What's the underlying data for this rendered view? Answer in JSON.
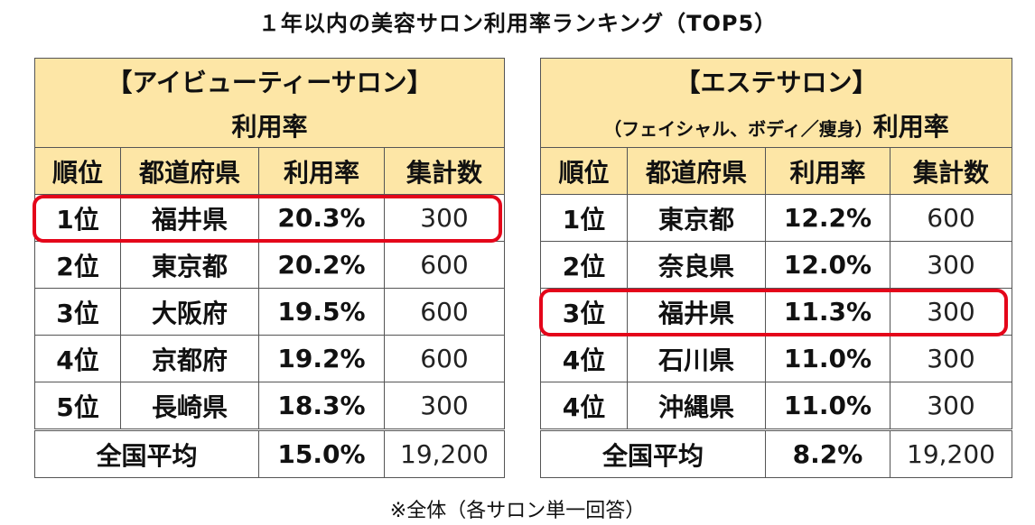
{
  "title": "１年以内の美容サロン利用率ランキング（TOP5）",
  "footnote": "※全体（各サロン単一回答）",
  "columns": [
    "順位",
    "都道府県",
    "利用率",
    "集計数"
  ],
  "left_table": {
    "header_line1": "【アイビューティーサロン】",
    "header_line2": "利用率",
    "rows": [
      {
        "rank": "1位",
        "pref": "福井県",
        "rate": "20.3%",
        "count": "300"
      },
      {
        "rank": "2位",
        "pref": "東京都",
        "rate": "20.2%",
        "count": "600"
      },
      {
        "rank": "3位",
        "pref": "大阪府",
        "rate": "19.5%",
        "count": "600"
      },
      {
        "rank": "4位",
        "pref": "京都府",
        "rate": "19.2%",
        "count": "600"
      },
      {
        "rank": "5位",
        "pref": "長崎県",
        "rate": "18.3%",
        "count": "300"
      }
    ],
    "average": {
      "label": "全国平均",
      "rate": "15.0%",
      "count": "19,200"
    }
  },
  "right_table": {
    "header_line1": "【エステサロン】",
    "header_line2_sub": "（フェイシャル、ボディ／痩身）",
    "header_line2_main": "利用率",
    "rows": [
      {
        "rank": "1位",
        "pref": "東京都",
        "rate": "12.2%",
        "count": "600"
      },
      {
        "rank": "2位",
        "pref": "奈良県",
        "rate": "12.0%",
        "count": "300"
      },
      {
        "rank": "3位",
        "pref": "福井県",
        "rate": "11.3%",
        "count": "300"
      },
      {
        "rank": "4位",
        "pref": "石川県",
        "rate": "11.0%",
        "count": "300"
      },
      {
        "rank": "4位",
        "pref": "沖縄県",
        "rate": "11.0%",
        "count": "300"
      }
    ],
    "average": {
      "label": "全国平均",
      "rate": "8.2%",
      "count": "19,200"
    }
  },
  "highlight_color": "#e4051a",
  "header_fill_color": "#fde6a6"
}
